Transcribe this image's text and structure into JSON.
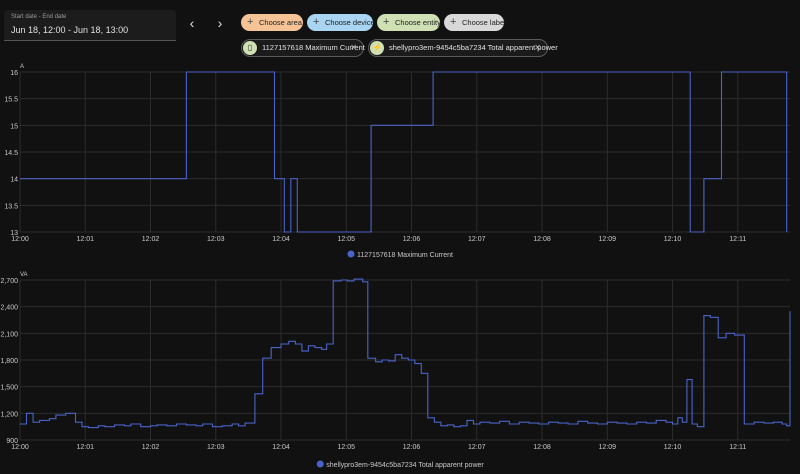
{
  "date_picker": {
    "label": "Start date - End date",
    "value": "Jun 18, 12:00 - Jun 18, 13:00"
  },
  "nav": {
    "prev": "‹",
    "next": "›"
  },
  "chips": [
    {
      "label": "Choose area",
      "color": "#f5c396"
    },
    {
      "label": "Choose device",
      "color": "#a9d4f2"
    },
    {
      "label": "Choose entity",
      "color": "#cfe0b4"
    },
    {
      "label": "Choose label",
      "color": "#d8d8d8"
    }
  ],
  "targets": [
    {
      "label": "1127157618 Maximum Current",
      "icon": "device-icon"
    },
    {
      "label": "shellypro3em-9454c5ba7234 Total apparent power",
      "icon": "lightning-icon"
    }
  ],
  "colors": {
    "series": "#4a63c8",
    "grid": "#2c2c2c",
    "axis_text": "#c9c9c9"
  },
  "chart_data": [
    {
      "type": "line",
      "unit": "A",
      "series": [
        {
          "name": "1127157618 Maximum Current",
          "step": true,
          "x": [
            0,
            2.55,
            3.9,
            4.05,
            4.15,
            4.25,
            4.38,
            4.45,
            5.38,
            6.33,
            10.27,
            10.48,
            10.75,
            11.68,
            11.75
          ],
          "y": [
            14,
            16,
            14,
            13,
            14,
            13,
            13,
            13,
            15,
            16,
            13,
            14,
            16,
            16,
            13
          ]
        }
      ],
      "x_ticks": [
        "12:00",
        "12:01",
        "12:02",
        "12:03",
        "12:04",
        "12:05",
        "12:06",
        "12:07",
        "12:08",
        "12:09",
        "12:10",
        "12:11"
      ],
      "x_range": [
        0,
        11.8
      ],
      "y_ticks": [
        "13",
        "13.5",
        "14",
        "14.5",
        "15",
        "15.5",
        "16"
      ],
      "y_range": [
        13,
        16
      ],
      "grid": true,
      "legend_position": "bottom"
    },
    {
      "type": "line",
      "unit": "VA",
      "series": [
        {
          "name": "shellypro3em-9454c5ba7234 Total apparent power",
          "step": true,
          "x": [
            0,
            0.1,
            0.2,
            0.3,
            0.45,
            0.55,
            0.7,
            0.85,
            0.95,
            1.05,
            1.2,
            1.3,
            1.45,
            1.6,
            1.7,
            1.85,
            2.0,
            2.1,
            2.25,
            2.4,
            2.55,
            2.7,
            2.8,
            2.95,
            3.1,
            3.25,
            3.35,
            3.45,
            3.6,
            3.72,
            3.85,
            4.0,
            4.12,
            4.22,
            4.32,
            4.42,
            4.52,
            4.62,
            4.7,
            4.8,
            4.92,
            5.02,
            5.12,
            5.25,
            5.33,
            5.45,
            5.55,
            5.65,
            5.75,
            5.85,
            5.95,
            6.05,
            6.15,
            6.25,
            6.35,
            6.45,
            6.55,
            6.65,
            6.75,
            6.85,
            6.95,
            7.05,
            7.2,
            7.35,
            7.5,
            7.65,
            7.8,
            7.95,
            8.1,
            8.25,
            8.4,
            8.55,
            8.7,
            8.85,
            9.0,
            9.15,
            9.3,
            9.45,
            9.6,
            9.75,
            9.9,
            10.0,
            10.08,
            10.15,
            10.22,
            10.3,
            10.38,
            10.48,
            10.58,
            10.7,
            10.82,
            10.95,
            11.1,
            11.25,
            11.4,
            11.55,
            11.68,
            11.75,
            11.8
          ],
          "y": [
            1080,
            1200,
            1100,
            1120,
            1140,
            1180,
            1200,
            1100,
            1050,
            1040,
            1060,
            1050,
            1070,
            1060,
            1080,
            1050,
            1060,
            1070,
            1060,
            1080,
            1070,
            1060,
            1080,
            1050,
            1060,
            1080,
            1060,
            1090,
            1420,
            1820,
            1940,
            1980,
            2010,
            1980,
            1900,
            1960,
            1940,
            1920,
            1980,
            2690,
            2700,
            2690,
            2710,
            2680,
            1820,
            1780,
            1800,
            1790,
            1860,
            1820,
            1800,
            1760,
            1650,
            1150,
            1100,
            1060,
            1070,
            1050,
            1060,
            1120,
            1080,
            1100,
            1090,
            1110,
            1080,
            1100,
            1090,
            1080,
            1100,
            1090,
            1080,
            1110,
            1090,
            1080,
            1100,
            1090,
            1080,
            1100,
            1090,
            1120,
            1100,
            1080,
            1150,
            1100,
            1580,
            1080,
            1050,
            2300,
            2280,
            2050,
            2100,
            2080,
            1080,
            1100,
            1090,
            1100,
            1080,
            1060,
            2350
          ]
        }
      ],
      "x_ticks": [
        "12:00",
        "12:01",
        "12:02",
        "12:03",
        "12:04",
        "12:05",
        "12:06",
        "12:07",
        "12:08",
        "12:09",
        "12:10",
        "12:11"
      ],
      "x_range": [
        0,
        11.8
      ],
      "y_ticks": [
        "900",
        "1,200",
        "1,500",
        "1,800",
        "2,100",
        "2,400",
        "2,700"
      ],
      "y_range": [
        900,
        2700
      ],
      "grid": true,
      "legend_position": "bottom"
    }
  ]
}
